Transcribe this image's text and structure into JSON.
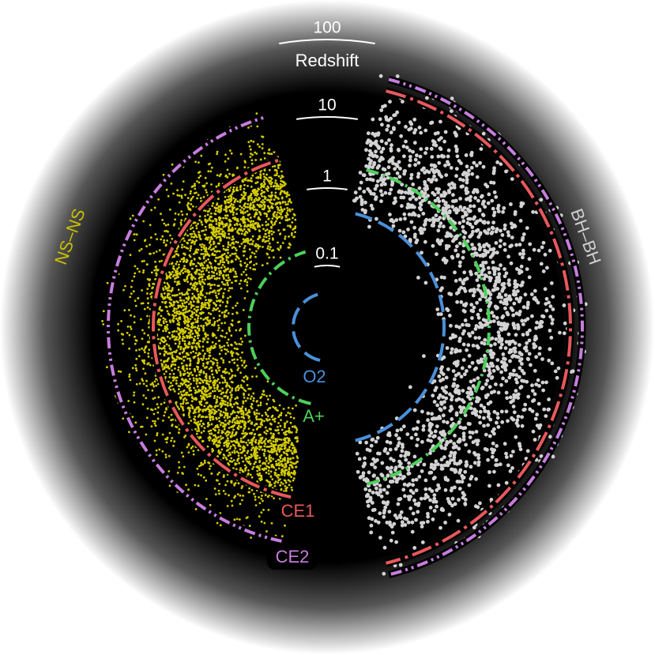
{
  "scale": {
    "title": "Redshift",
    "ticks": [
      "100",
      "10",
      "1",
      "0.1"
    ]
  },
  "populations": {
    "left": "NS–NS",
    "right": "BH–BH"
  },
  "detectors": [
    "O2",
    "A+",
    "CE1",
    "CE2"
  ]
}
